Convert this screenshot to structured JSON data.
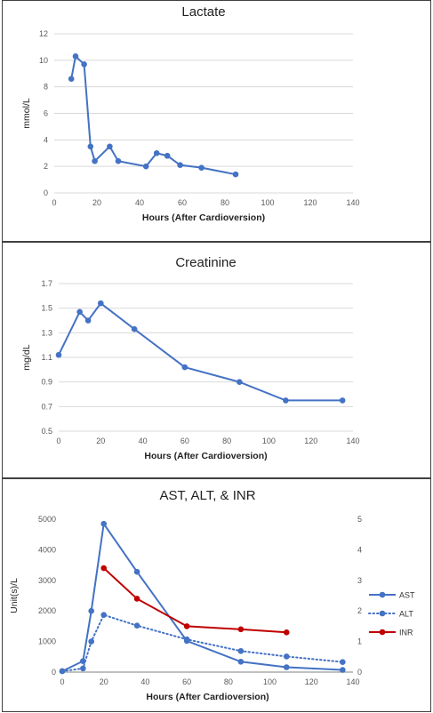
{
  "chart_data": [
    {
      "type": "line",
      "title": "Lactate",
      "xlabel": "Hours (After Cardioversion)",
      "ylabel": "mmol/L",
      "xlim": [
        0,
        140
      ],
      "ylim": [
        0,
        12
      ],
      "xticks": [
        0,
        20,
        40,
        60,
        80,
        100,
        120,
        140
      ],
      "yticks": [
        0,
        2,
        4,
        6,
        8,
        10,
        12
      ],
      "grid": true,
      "color": "#4472C4",
      "series": [
        {
          "x": [
            8,
            10,
            14,
            17,
            19,
            26,
            30,
            43,
            48,
            53,
            59,
            69,
            85
          ],
          "y": [
            8.6,
            10.3,
            9.7,
            3.5,
            2.4,
            3.5,
            2.4,
            2.0,
            3.0,
            2.8,
            2.1,
            1.9,
            1.4
          ]
        }
      ]
    },
    {
      "type": "line",
      "title": "Creatinine",
      "xlabel": "Hours (After Cardioversion)",
      "ylabel": "mg/dL",
      "xlim": [
        0,
        140
      ],
      "ylim": [
        0.5,
        1.7
      ],
      "xticks": [
        0,
        20,
        40,
        60,
        80,
        100,
        120,
        140
      ],
      "yticks": [
        0.5,
        0.7,
        0.9,
        1.1,
        1.3,
        1.5,
        1.7
      ],
      "grid": true,
      "color": "#4472C4",
      "series": [
        {
          "x": [
            0,
            10,
            14,
            20,
            36,
            60,
            86,
            108,
            135
          ],
          "y": [
            1.12,
            1.47,
            1.4,
            1.54,
            1.33,
            1.02,
            0.9,
            0.75,
            0.75
          ]
        }
      ]
    },
    {
      "type": "line",
      "title": "AST, ALT, & INR",
      "xlabel": "Hours (After Cardioversion)",
      "ylabel": "Unit(s)/L",
      "xlim": [
        0,
        140
      ],
      "ylim": [
        0,
        5000
      ],
      "ylim_right": [
        0,
        5
      ],
      "xticks": [
        0,
        20,
        40,
        60,
        80,
        100,
        120,
        140
      ],
      "yticks": [
        0,
        1000,
        2000,
        3000,
        4000,
        5000
      ],
      "yticks_right": [
        0,
        1,
        2,
        3,
        4,
        5
      ],
      "grid": false,
      "legend": "right",
      "series": [
        {
          "name": "AST",
          "axis": "left",
          "style": "solid",
          "color": "#4472C4",
          "x": [
            0,
            10,
            14,
            20,
            36,
            60,
            86,
            108,
            135
          ],
          "y": [
            30,
            360,
            2000,
            4850,
            3280,
            1020,
            340,
            160,
            70
          ]
        },
        {
          "name": "ALT",
          "axis": "left",
          "style": "dotted",
          "color": "#4472C4",
          "x": [
            0,
            10,
            14,
            20,
            36,
            60,
            86,
            108,
            135
          ],
          "y": [
            30,
            120,
            1000,
            1870,
            1520,
            1070,
            690,
            510,
            330
          ]
        },
        {
          "name": "INR",
          "axis": "right",
          "style": "solid",
          "color": "#C00000",
          "x": [
            20,
            36,
            60,
            86,
            108
          ],
          "y": [
            3.4,
            2.4,
            1.5,
            1.4,
            1.3
          ]
        }
      ]
    }
  ]
}
